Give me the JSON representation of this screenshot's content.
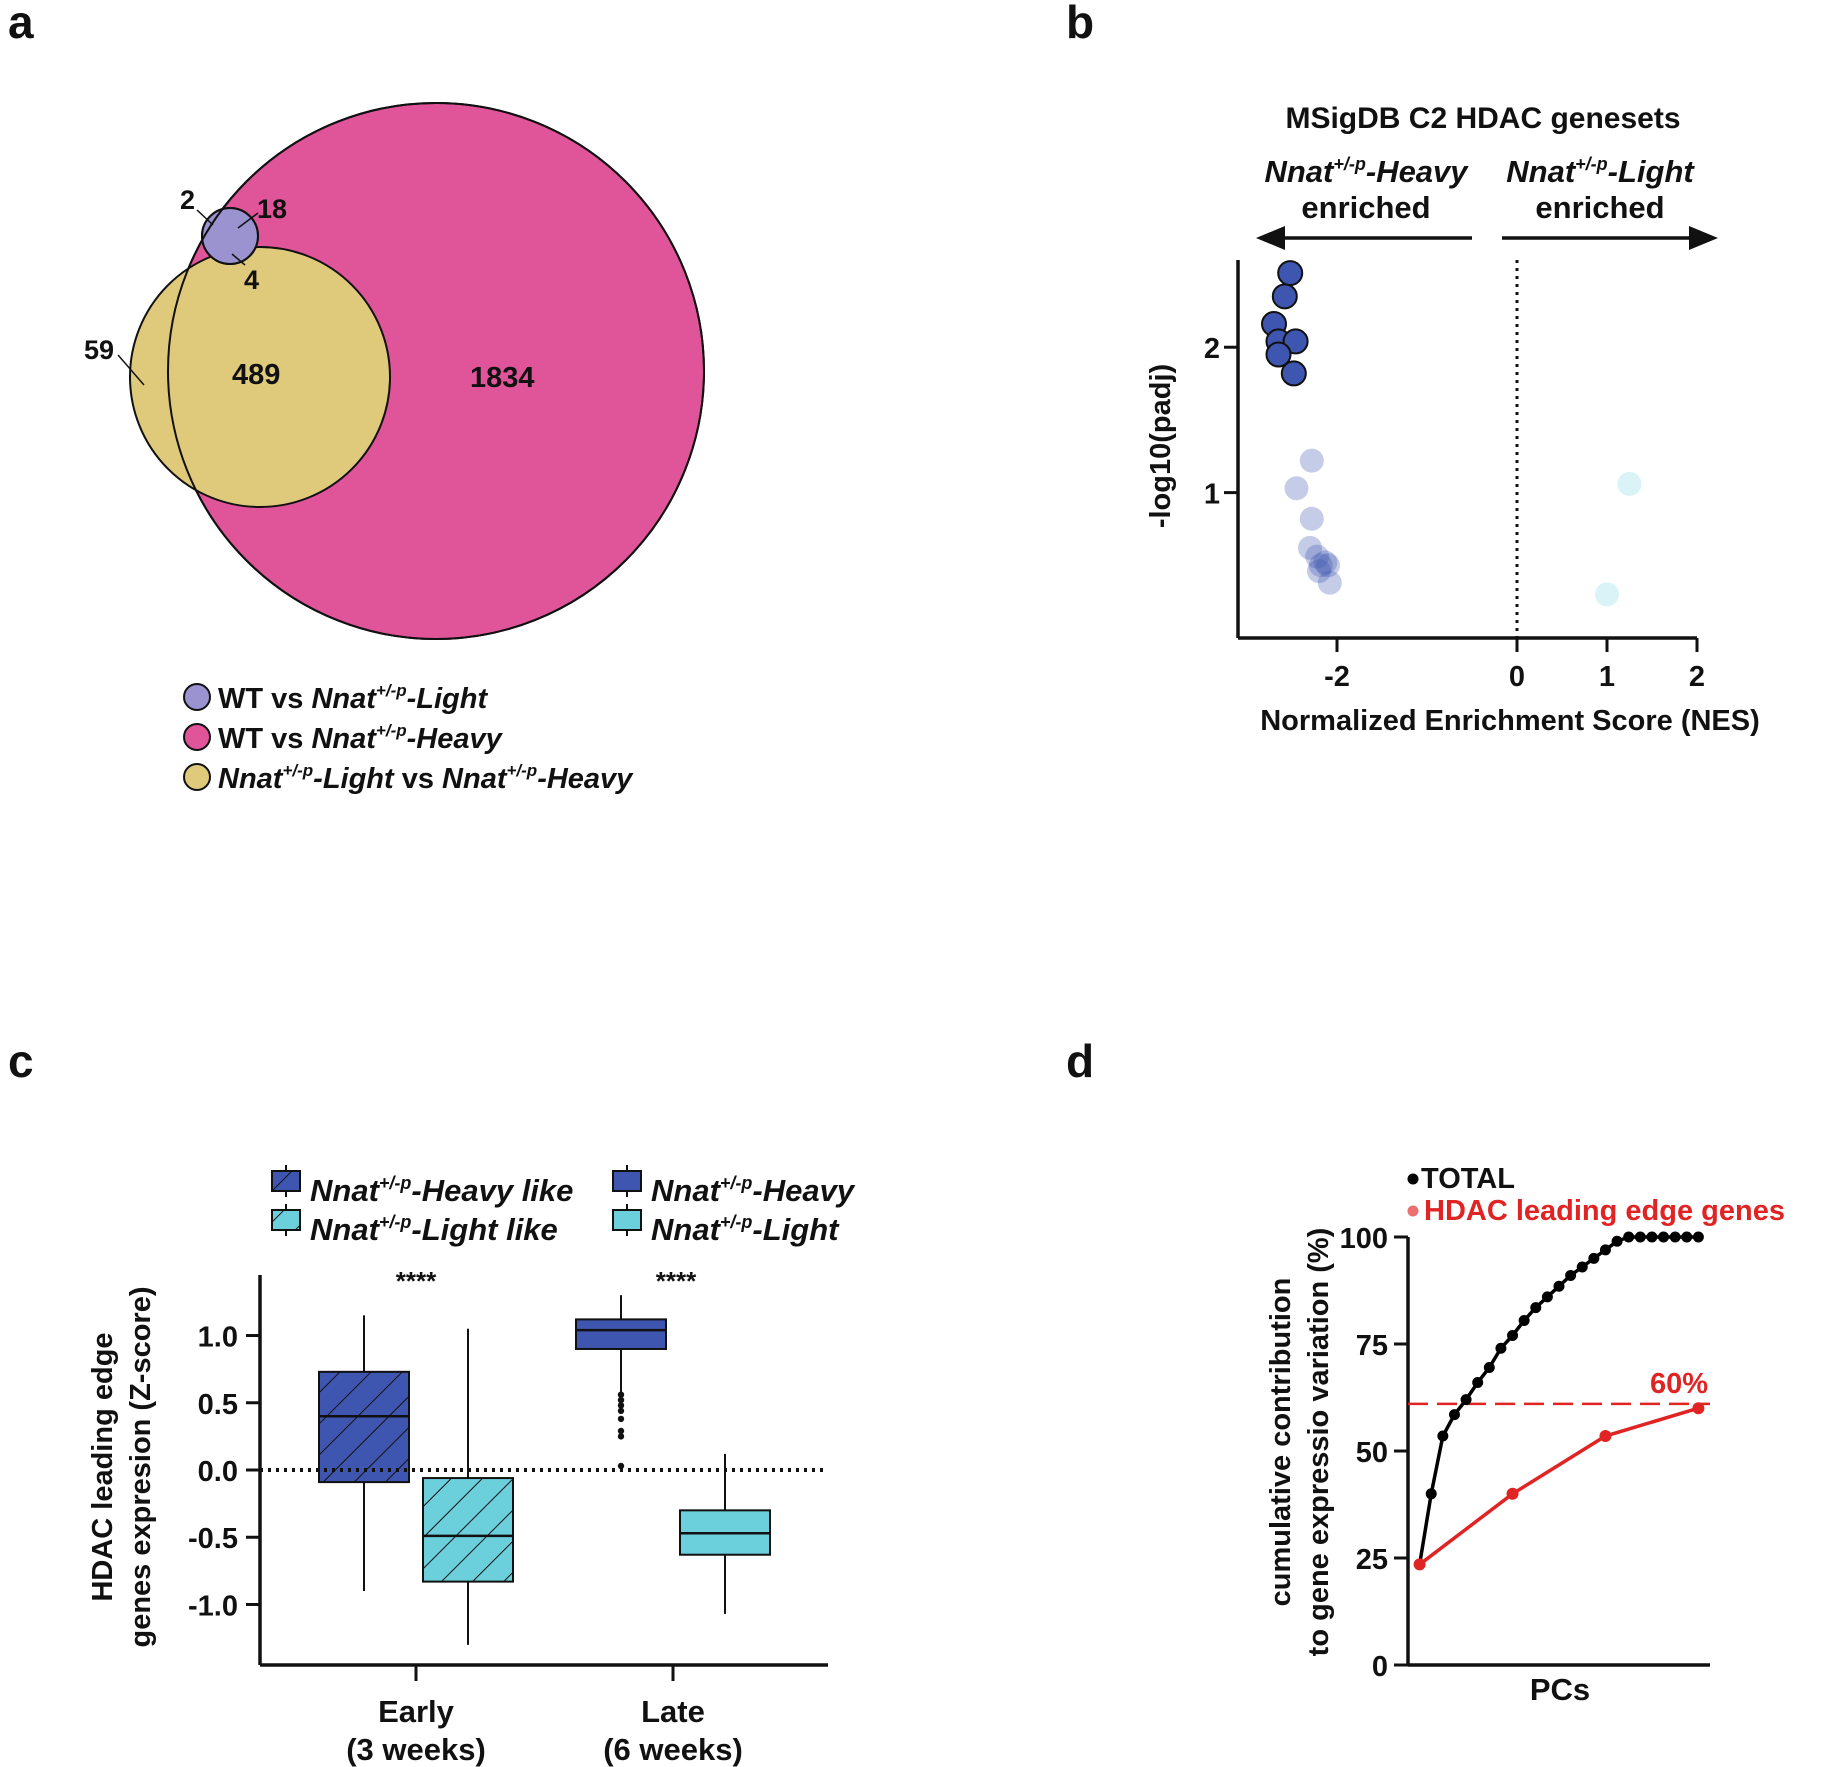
{
  "panel_letters": [
    "a",
    "b",
    "c",
    "d"
  ],
  "colors": {
    "light": "#9b93cf",
    "heavy": "#e0559a",
    "light_vs_heavy": "#dfc97b",
    "nes_heavy": "#3f56b0",
    "box_heavy": "#3f56b0",
    "box_light": "#6ccfdc",
    "total": "#000000",
    "hdac": "#e02424"
  },
  "panel_a": {
    "type": "venn",
    "counts": {
      "light_only": "18",
      "light_heavy": "2",
      "light_all": "4",
      "light_vs_heavy_only": "59",
      "lvh_heavy": "489",
      "heavy_only": "1834"
    },
    "legend": [
      {
        "key": "light",
        "parts": [
          "WT vs ",
          "Nnat",
          "+/-p",
          "-Light"
        ]
      },
      {
        "key": "heavy",
        "parts": [
          "WT vs ",
          "Nnat",
          "+/-p",
          "-Heavy"
        ]
      },
      {
        "key": "light_vs_heavy",
        "parts": [
          "Nnat",
          "+/-p",
          "-Light",
          " vs ",
          "Nnat",
          "+/-p",
          "-Heavy"
        ]
      }
    ]
  },
  "chart_data": [
    {
      "panel": "b",
      "type": "scatter",
      "title": "MSigDB C2 HDAC genesets",
      "left_header": {
        "gene": "Nnat",
        "sup": "+/-p",
        "suffix": "-Heavy",
        "line2": "enriched"
      },
      "right_header": {
        "gene": "Nnat",
        "sup": "+/-p",
        "suffix": "-Light",
        "line2": "enriched"
      },
      "xlabel": "Normalized Enrichment Score (NES)",
      "ylabel": "-log10(padj)",
      "xlim": [
        -3.1,
        2
      ],
      "ylim": [
        0,
        2.6
      ],
      "xticks": [
        -2,
        0,
        1,
        2
      ],
      "yticks": [
        1,
        2
      ],
      "reference_line_x": 0,
      "points": [
        {
          "x": -2.52,
          "y": 2.51,
          "group": "heavy",
          "significant": true
        },
        {
          "x": -2.58,
          "y": 2.35,
          "group": "heavy",
          "significant": true
        },
        {
          "x": -2.7,
          "y": 2.16,
          "group": "heavy",
          "significant": true
        },
        {
          "x": -2.65,
          "y": 2.04,
          "group": "heavy",
          "significant": true
        },
        {
          "x": -2.46,
          "y": 2.04,
          "group": "heavy",
          "significant": true
        },
        {
          "x": -2.65,
          "y": 1.95,
          "group": "heavy",
          "significant": true
        },
        {
          "x": -2.48,
          "y": 1.82,
          "group": "heavy",
          "significant": true
        },
        {
          "x": -2.28,
          "y": 1.22,
          "group": "heavy",
          "significant": false
        },
        {
          "x": -2.45,
          "y": 1.03,
          "group": "heavy",
          "significant": false
        },
        {
          "x": -2.28,
          "y": 0.82,
          "group": "heavy",
          "significant": false
        },
        {
          "x": -2.3,
          "y": 0.62,
          "group": "heavy",
          "significant": false
        },
        {
          "x": -2.22,
          "y": 0.56,
          "group": "heavy",
          "significant": false
        },
        {
          "x": -2.18,
          "y": 0.5,
          "group": "heavy",
          "significant": false
        },
        {
          "x": -2.13,
          "y": 0.52,
          "group": "heavy",
          "significant": false
        },
        {
          "x": -2.1,
          "y": 0.5,
          "group": "heavy",
          "significant": false
        },
        {
          "x": -2.2,
          "y": 0.46,
          "group": "heavy",
          "significant": false
        },
        {
          "x": -2.08,
          "y": 0.38,
          "group": "heavy",
          "significant": false
        },
        {
          "x": 1.25,
          "y": 1.06,
          "group": "light",
          "significant": false
        },
        {
          "x": 1.0,
          "y": 0.3,
          "group": "light",
          "significant": false
        }
      ]
    },
    {
      "panel": "c",
      "type": "box",
      "categories": [
        "Early\n(3 weeks)",
        "Late\n(6 weeks)"
      ],
      "category_lines": [
        [
          "Early",
          "(3 weeks)"
        ],
        [
          "Late",
          "(6 weeks)"
        ]
      ],
      "ylabel": "HDAC leading edge\ngenes expresion (Z-score)",
      "ylabel_lines": [
        "HDAC leading edge",
        "genes expresion (Z-score)"
      ],
      "ylim": [
        -1.45,
        1.45
      ],
      "yticks": [
        1.0,
        0.5,
        0.0,
        -0.5,
        -1.0
      ],
      "ytick_labels": [
        "1.0",
        "0.5",
        "0.0",
        "-0.5",
        "-1.0"
      ],
      "reference_line_y": 0,
      "significance": [
        "****",
        "****"
      ],
      "legend": [
        {
          "key": "heavy_like",
          "gene": "Nnat",
          "sup": "+/-p",
          "suffix": "-Heavy like"
        },
        {
          "key": "heavy",
          "gene": "Nnat",
          "sup": "+/-p",
          "suffix": "-Heavy"
        },
        {
          "key": "light_like",
          "gene": "Nnat",
          "sup": "+/-p",
          "suffix": "-Light like"
        },
        {
          "key": "light",
          "gene": "Nnat",
          "sup": "+/-p",
          "suffix": "-Light"
        }
      ],
      "series": [
        {
          "key": "heavy_like",
          "category": 0,
          "offset": -1,
          "hatched": true,
          "color": "#3f56b0",
          "whisker_low": -0.9,
          "q1": -0.09,
          "median": 0.4,
          "q3": 0.73,
          "whisker_high": 1.15,
          "outliers": []
        },
        {
          "key": "light_like",
          "category": 0,
          "offset": 1,
          "hatched": true,
          "color": "#6ccfdc",
          "whisker_low": -1.3,
          "q1": -0.83,
          "median": -0.49,
          "q3": -0.06,
          "whisker_high": 1.05,
          "outliers": []
        },
        {
          "key": "heavy",
          "category": 1,
          "offset": -1,
          "hatched": false,
          "color": "#3f56b0",
          "whisker_low": 0.58,
          "q1": 0.9,
          "median": 1.04,
          "q3": 1.12,
          "whisker_high": 1.3,
          "outliers": [
            0.56,
            0.52,
            0.48,
            0.44,
            0.38,
            0.29,
            0.25,
            0.03
          ]
        },
        {
          "key": "light",
          "category": 1,
          "offset": 1,
          "hatched": false,
          "color": "#6ccfdc",
          "whisker_low": -1.07,
          "q1": -0.63,
          "median": -0.47,
          "q3": -0.3,
          "whisker_high": 0.12,
          "outliers": []
        }
      ]
    },
    {
      "panel": "d",
      "type": "line",
      "xlabel": "PCs",
      "ylabel": "cumulative contribution\nto gene expressio variation (%)",
      "ylabel_lines": [
        "cumulative contribution",
        "to gene expressio variation (%)"
      ],
      "ylim": [
        0,
        100
      ],
      "yticks": [
        0,
        25,
        50,
        75,
        100
      ],
      "xlim": [
        0,
        26
      ],
      "annotation": "60%",
      "reference_line_y": 61,
      "series": [
        {
          "name": "TOTAL",
          "x": [
            1,
            2,
            3,
            4,
            5,
            6,
            7,
            8,
            9,
            10,
            11,
            12,
            13,
            14,
            15,
            16,
            17,
            18,
            19,
            20,
            21,
            22,
            23,
            24,
            25
          ],
          "values": [
            23.5,
            40,
            53.5,
            58.5,
            62,
            66,
            69.5,
            74,
            77,
            80.5,
            83.5,
            86,
            88.5,
            91,
            93,
            95,
            97,
            99,
            100,
            100,
            100,
            100,
            100,
            100,
            100
          ]
        },
        {
          "name": "HDAC leading edge genes",
          "x": [
            1,
            9,
            17,
            25
          ],
          "values": [
            23.5,
            40,
            53.5,
            60
          ]
        }
      ]
    }
  ]
}
